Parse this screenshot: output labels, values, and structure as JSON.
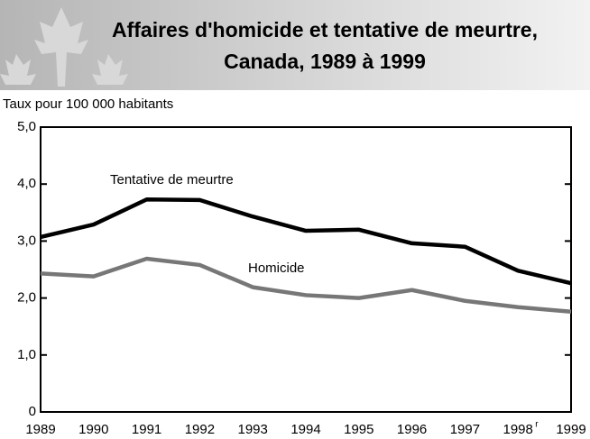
{
  "chart_data": {
    "type": "line",
    "title": [
      "Affaires d'homicide et tentative de meurtre,",
      "Canada, 1989 à 1999"
    ],
    "y_label": "Taux pour 100 000 habitants",
    "categories": [
      "1989",
      "1990",
      "1991",
      "1992",
      "1993",
      "1994",
      "1995",
      "1996",
      "1997",
      "1998",
      "1999"
    ],
    "revised_marker": "r",
    "series": [
      {
        "name": "Tentative de meurtre",
        "color": "#000000",
        "values": [
          3.07,
          3.29,
          3.73,
          3.72,
          3.43,
          3.18,
          3.2,
          2.96,
          2.9,
          2.48,
          2.26
        ]
      },
      {
        "name": "Homicide",
        "color": "#777777",
        "values": [
          2.43,
          2.38,
          2.69,
          2.58,
          2.19,
          2.05,
          2.0,
          2.14,
          1.95,
          1.84,
          1.76
        ]
      }
    ],
    "ylim": [
      0,
      5
    ],
    "yticks": [
      0,
      {
        "value": 1,
        "label": "1,0"
      },
      {
        "value": 2,
        "label": "2,0"
      },
      {
        "value": 3,
        "label": "3,0"
      },
      {
        "value": 4,
        "label": "4,0"
      },
      {
        "value": 5,
        "label": "5,0"
      }
    ]
  }
}
